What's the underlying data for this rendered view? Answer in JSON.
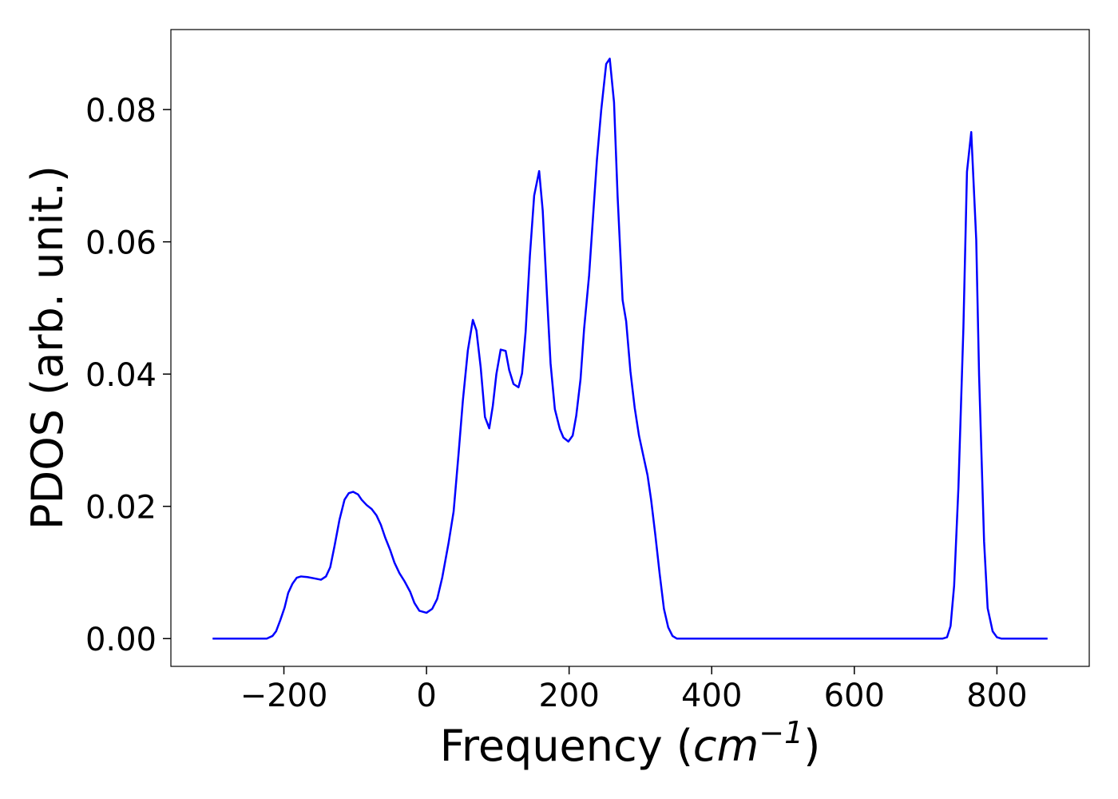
{
  "chart_data": {
    "type": "line",
    "xlabel": [
      "Frequency (",
      "cm",
      "−1",
      ")"
    ],
    "ylabel": "PDOS (arb. unit.)",
    "xlim": [
      -358.5,
      929.5
    ],
    "ylim": [
      -0.0042,
      0.0921
    ],
    "xticks": [
      {
        "value": -200,
        "label": "−200"
      },
      0,
      200,
      400,
      600,
      800
    ],
    "yticks": [
      {
        "value": 0,
        "label": "0.00"
      },
      {
        "value": 0.02,
        "label": "0.02"
      },
      {
        "value": 0.04,
        "label": "0.04"
      },
      {
        "value": 0.06,
        "label": "0.06"
      },
      {
        "value": 0.08,
        "label": "0.08"
      }
    ],
    "x": [
      -300,
      -224,
      -216,
      -211,
      -205,
      -199,
      -194,
      -188,
      -182,
      -176,
      -167,
      -157,
      -148,
      -141,
      -135,
      -129,
      -122,
      -115,
      -109,
      -103,
      -96,
      -91,
      -84,
      -77,
      -70,
      -64,
      -58,
      -51,
      -45,
      -38,
      -31,
      -23,
      -17,
      -10,
      0,
      8,
      15,
      22,
      31,
      38,
      45,
      51,
      58,
      65,
      70,
      76,
      82,
      88,
      93,
      98,
      104,
      111,
      116,
      122,
      129,
      134,
      139,
      145,
      151,
      158,
      163,
      169,
      174,
      180,
      187,
      192,
      199,
      205,
      210,
      216,
      221,
      228,
      234,
      239,
      245,
      252,
      257,
      263,
      268,
      275,
      280,
      286,
      292,
      298,
      304,
      310,
      315,
      321,
      327,
      333,
      339,
      345,
      351,
      724,
      730,
      735,
      740,
      746,
      753,
      758,
      764,
      771,
      775,
      782,
      787,
      794,
      800,
      806,
      871
    ],
    "series": [
      {
        "color": "#0000ff",
        "values": [
          0,
          0,
          0.0004,
          0.0011,
          0.0028,
          0.0047,
          0.0069,
          0.0083,
          0.0092,
          0.0094,
          0.0093,
          0.0091,
          0.0089,
          0.0094,
          0.0108,
          0.014,
          0.018,
          0.021,
          0.022,
          0.0222,
          0.0218,
          0.021,
          0.0202,
          0.0196,
          0.0186,
          0.0172,
          0.0153,
          0.0134,
          0.0115,
          0.0099,
          0.0087,
          0.0071,
          0.0054,
          0.0042,
          0.0039,
          0.0045,
          0.006,
          0.0092,
          0.0145,
          0.0192,
          0.028,
          0.036,
          0.0436,
          0.0482,
          0.0466,
          0.041,
          0.0335,
          0.0318,
          0.0352,
          0.04,
          0.0437,
          0.0435,
          0.0406,
          0.0385,
          0.038,
          0.0401,
          0.0464,
          0.0579,
          0.067,
          0.0707,
          0.0647,
          0.0518,
          0.0416,
          0.0347,
          0.0317,
          0.0304,
          0.0298,
          0.0307,
          0.0337,
          0.0392,
          0.0468,
          0.0549,
          0.0645,
          0.0724,
          0.0799,
          0.0869,
          0.0877,
          0.0811,
          0.0669,
          0.0512,
          0.048,
          0.0404,
          0.0349,
          0.0307,
          0.0277,
          0.0247,
          0.021,
          0.0156,
          0.0098,
          0.0045,
          0.0017,
          0.0004,
          0,
          0,
          0.0002,
          0.0019,
          0.008,
          0.0228,
          0.047,
          0.0706,
          0.0766,
          0.0603,
          0.0398,
          0.0147,
          0.0046,
          0.0011,
          0.0002,
          0,
          0
        ]
      }
    ]
  }
}
